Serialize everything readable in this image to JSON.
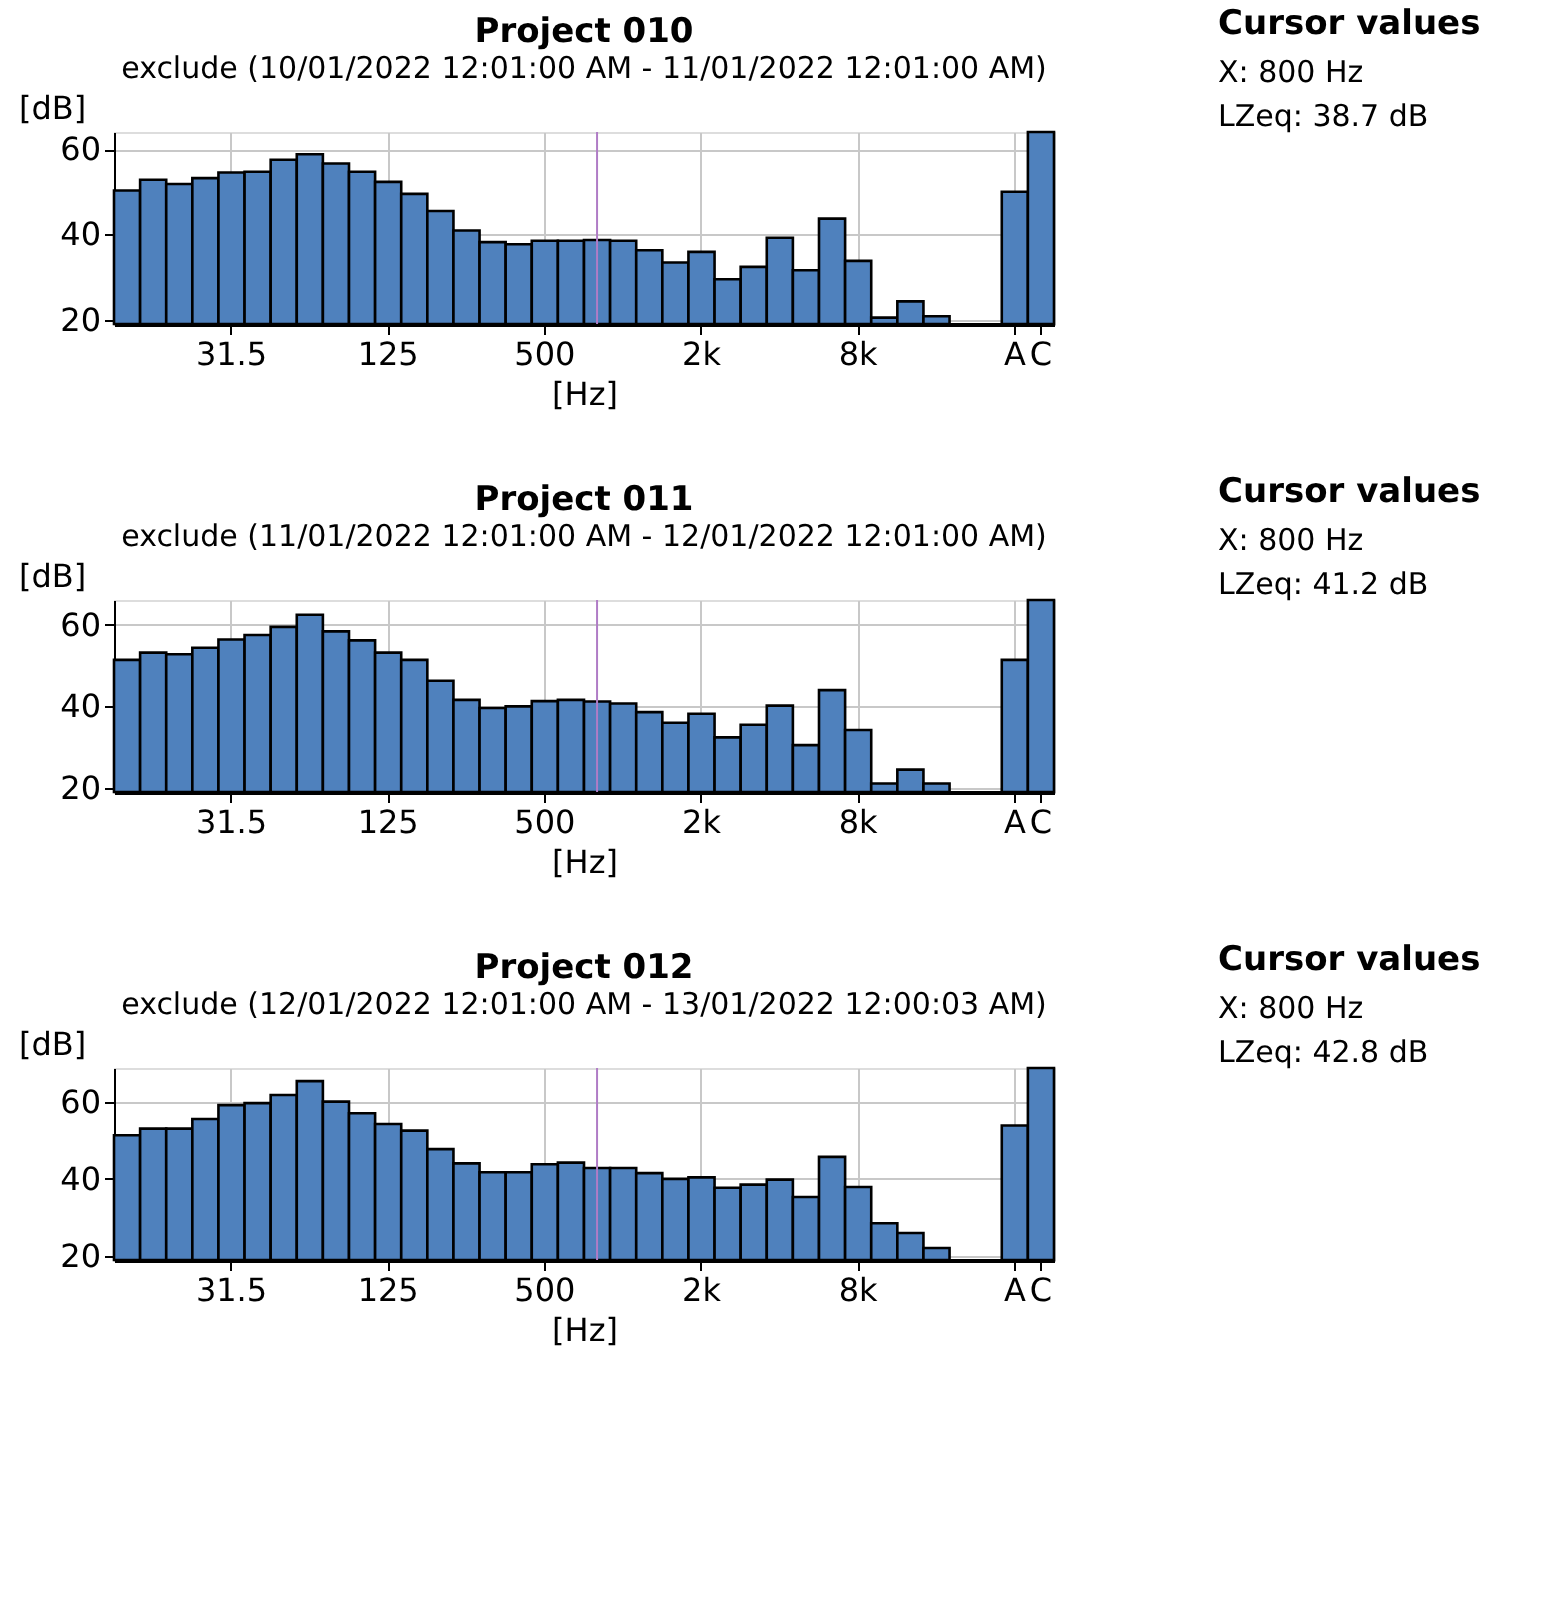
{
  "chart_data": [
    {
      "type": "bar",
      "title": "Project 010",
      "subtitle": "exclude (10/01/2022 12:01:00 AM - 11/01/2022 12:01:00 AM)",
      "xlabel": "[Hz]",
      "ylabel": "[dB]",
      "categories": [
        null,
        null,
        null,
        null,
        "31.5",
        null,
        null,
        null,
        null,
        null,
        "125",
        null,
        null,
        null,
        null,
        null,
        "500",
        null,
        null,
        null,
        null,
        null,
        "2k",
        null,
        null,
        null,
        null,
        null,
        "8k",
        null,
        null,
        null,
        null,
        null,
        "A",
        "C"
      ],
      "values": [
        50.3,
        52.8,
        51.8,
        53.2,
        54.5,
        54.7,
        57.5,
        58.8,
        56.6,
        54.7,
        52.3,
        49.5,
        45.5,
        40.9,
        38.2,
        37.7,
        38.5,
        38.5,
        38.7,
        38.5,
        36.3,
        33.4,
        35.9,
        29.5,
        32.4,
        39.2,
        31.6,
        43.7,
        33.8,
        20.5,
        24.3,
        20.8,
        null,
        null,
        50.0,
        64.0
      ],
      "color": "#4f81bd",
      "ylim": [
        19,
        64
      ],
      "yticks": [
        20,
        40,
        60
      ],
      "grid": true,
      "annotations": [
        "Cursor values",
        "X: 800 Hz",
        "LZeq: 38.7 dB"
      ]
    },
    {
      "type": "bar",
      "title": "Project 011",
      "subtitle": "exclude (11/01/2022 12:01:00 AM - 12/01/2022 12:01:00 AM)",
      "xlabel": "[Hz]",
      "ylabel": "[dB]",
      "categories": [
        null,
        null,
        null,
        null,
        "31.5",
        null,
        null,
        null,
        null,
        null,
        "125",
        null,
        null,
        null,
        null,
        null,
        "500",
        null,
        null,
        null,
        null,
        null,
        "2k",
        null,
        null,
        null,
        null,
        null,
        "8k",
        null,
        null,
        null,
        null,
        null,
        "A",
        "C"
      ],
      "values": [
        51.4,
        53.2,
        52.8,
        54.4,
        56.4,
        57.5,
        59.5,
        62.5,
        58.4,
        56.2,
        53.2,
        51.4,
        46.3,
        41.6,
        39.6,
        40.0,
        41.3,
        41.6,
        41.2,
        40.7,
        38.6,
        36.0,
        38.2,
        32.4,
        35.5,
        40.2,
        30.5,
        44.0,
        34.2,
        21.1,
        24.5,
        21.1,
        null,
        null,
        51.4,
        66.1
      ],
      "color": "#4f81bd",
      "ylim": [
        19,
        66.1
      ],
      "yticks": [
        20,
        40,
        60
      ],
      "grid": true,
      "annotations": [
        "Cursor values",
        "X: 800 Hz",
        "LZeq: 41.2 dB"
      ]
    },
    {
      "type": "bar",
      "title": "Project 012",
      "subtitle": "exclude (12/01/2022 12:01:00 AM - 13/01/2022 12:00:03 AM)",
      "xlabel": "[Hz]",
      "ylabel": "[dB]",
      "categories": [
        null,
        null,
        null,
        null,
        "31.5",
        null,
        null,
        null,
        null,
        null,
        "125",
        null,
        null,
        null,
        null,
        null,
        "500",
        null,
        null,
        null,
        null,
        null,
        "2k",
        null,
        null,
        null,
        null,
        null,
        "8k",
        null,
        null,
        null,
        null,
        null,
        "A",
        "C"
      ],
      "values": [
        51.3,
        53.0,
        53.0,
        55.5,
        59.1,
        59.6,
        61.7,
        65.3,
        60.0,
        57.0,
        54.2,
        52.5,
        47.7,
        44.0,
        41.7,
        41.7,
        43.8,
        44.2,
        42.8,
        42.8,
        41.5,
        40.0,
        40.4,
        37.7,
        38.5,
        39.8,
        35.3,
        45.7,
        37.9,
        28.5,
        26.0,
        22.1,
        null,
        null,
        53.8,
        68.7
      ],
      "color": "#4f81bd",
      "ylim": [
        19,
        68.7
      ],
      "yticks": [
        20,
        40,
        60
      ],
      "grid": true,
      "annotations": [
        "Cursor values",
        "X: 800 Hz",
        "LZeq: 42.8 dB"
      ]
    }
  ]
}
